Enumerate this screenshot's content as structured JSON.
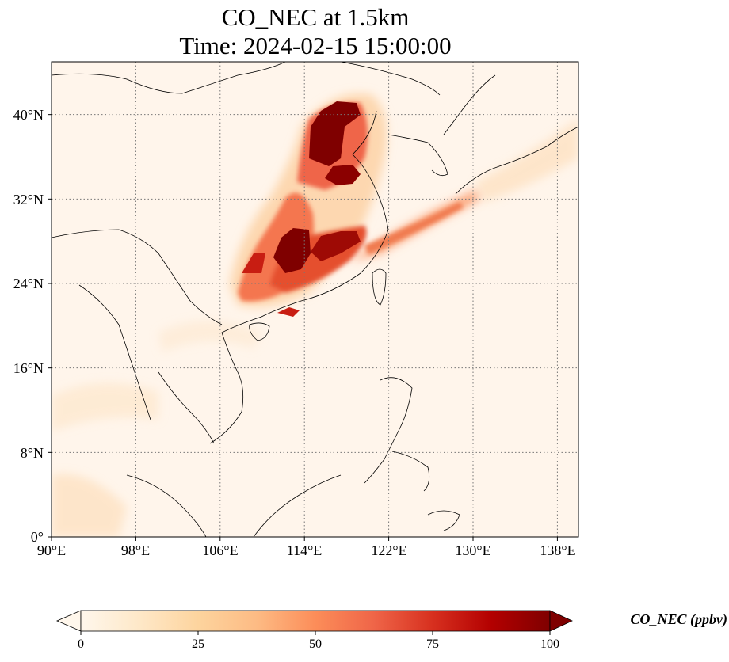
{
  "title": {
    "line1": "CO_NEC at 1.5km",
    "line2": "Time: 2024-02-15 15:00:00"
  },
  "map": {
    "lon_range": [
      90,
      140
    ],
    "lat_range": [
      0,
      45
    ],
    "lat_ticks": [
      {
        "value": 40,
        "label": "40°N"
      },
      {
        "value": 32,
        "label": "32°N"
      },
      {
        "value": 24,
        "label": "24°N"
      },
      {
        "value": 16,
        "label": "16°N"
      },
      {
        "value": 8,
        "label": "8°N"
      },
      {
        "value": 0,
        "label": "0°"
      }
    ],
    "lon_ticks": [
      {
        "value": 90,
        "label": "90°E"
      },
      {
        "value": 98,
        "label": "98°E"
      },
      {
        "value": 106,
        "label": "106°E"
      },
      {
        "value": 114,
        "label": "114°E"
      },
      {
        "value": 122,
        "label": "122°E"
      },
      {
        "value": 130,
        "label": "130°E"
      },
      {
        "value": 138,
        "label": "138°E"
      }
    ],
    "gridlines": "dotted",
    "background_color": "#fff5eb"
  },
  "colorbar": {
    "label": "CO_NEC (ppbv)",
    "range": [
      0,
      100
    ],
    "extend": "both",
    "ticks": [
      "0",
      "25",
      "50",
      "75",
      "100"
    ],
    "colormap": "OrRd",
    "colors": [
      "#fff7ec",
      "#fee8c8",
      "#fdd49e",
      "#fdbb84",
      "#fc8d59",
      "#ef6548",
      "#d7301f",
      "#b30000",
      "#7f0000"
    ]
  }
}
